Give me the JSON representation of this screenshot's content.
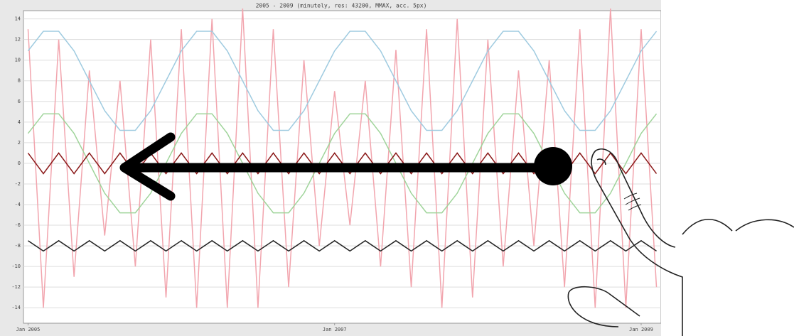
{
  "chart_data": {
    "type": "line",
    "title": "2005 - 2009 (minutely, res: 43200, MMAX, acc. 5px)",
    "x": [
      2005.0,
      2005.1,
      2005.2,
      2005.3,
      2005.4,
      2005.5,
      2005.6,
      2005.7,
      2005.8,
      2005.9,
      2006.0,
      2006.1,
      2006.2,
      2006.3,
      2006.4,
      2006.5,
      2006.6,
      2006.7,
      2006.8,
      2006.9,
      2007.0,
      2007.1,
      2007.2,
      2007.3,
      2007.4,
      2007.5,
      2007.6,
      2007.7,
      2007.8,
      2007.9,
      2008.0,
      2008.1,
      2008.2,
      2008.3,
      2008.4,
      2008.5,
      2008.6,
      2008.7,
      2008.8,
      2008.9,
      2009.0,
      2009.1
    ],
    "series": [
      {
        "color": "#f2a5ae",
        "values": [
          13,
          -14,
          12,
          -11,
          9,
          -7,
          8,
          -10,
          12,
          -13,
          13,
          -14,
          14,
          -14,
          15,
          -14,
          13,
          -12,
          10,
          -8,
          7,
          -6,
          8,
          -10,
          11,
          -12,
          13,
          -14,
          14,
          -13,
          12,
          -10,
          9,
          -8,
          10,
          -12,
          13,
          -14,
          15,
          -14,
          13,
          -12
        ]
      },
      {
        "color": "#9fcbe0",
        "values": [
          10.9,
          12.8,
          12.8,
          10.9,
          8,
          5.1,
          3.2,
          3.2,
          5.1,
          8,
          10.9,
          12.8,
          12.8,
          10.9,
          8,
          5.1,
          3.2,
          3.2,
          5.1,
          8,
          10.9,
          12.8,
          12.8,
          10.9,
          8,
          5.1,
          3.2,
          3.2,
          5.1,
          8,
          10.9,
          12.8,
          12.8,
          10.9,
          8,
          5.1,
          3.2,
          3.2,
          5.1,
          8,
          10.9,
          12.8
        ]
      },
      {
        "color": "#9fd49a",
        "values": [
          2.9,
          4.8,
          4.8,
          2.9,
          0,
          -2.9,
          -4.8,
          -4.8,
          -2.9,
          0,
          2.9,
          4.8,
          4.8,
          2.9,
          0,
          -2.9,
          -4.8,
          -4.8,
          -2.9,
          0,
          2.9,
          4.8,
          4.8,
          2.9,
          0,
          -2.9,
          -4.8,
          -4.8,
          -2.9,
          0,
          2.9,
          4.8,
          4.8,
          2.9,
          0,
          -2.9,
          -4.8,
          -4.8,
          -2.9,
          0,
          2.9,
          4.8
        ]
      },
      {
        "color": "#8b1a1a",
        "values": [
          1,
          -1,
          1,
          -1,
          1,
          -1,
          1,
          -1,
          1,
          -1,
          1,
          -1,
          1,
          -1,
          1,
          -1,
          1,
          -1,
          1,
          -1,
          1,
          -1,
          1,
          -1,
          1,
          -1,
          1,
          -1,
          1,
          -1,
          1,
          -1,
          1,
          -1,
          1,
          -1,
          1,
          -1,
          1,
          -1,
          1,
          -1
        ]
      },
      {
        "color": "#222222",
        "values": [
          -7.5,
          -8.5,
          -7.5,
          -8.5,
          -7.5,
          -8.5,
          -7.5,
          -8.5,
          -7.5,
          -8.5,
          -7.5,
          -8.5,
          -7.5,
          -8.5,
          -7.5,
          -8.5,
          -7.5,
          -8.5,
          -7.5,
          -8.5,
          -7.5,
          -8.5,
          -7.5,
          -8.5,
          -7.5,
          -8.5,
          -7.5,
          -8.5,
          -7.5,
          -8.5,
          -7.5,
          -8.5,
          -7.5,
          -8.5,
          -7.5,
          -8.5,
          -7.5,
          -8.5,
          -7.5,
          -8.5,
          -7.5,
          -8.5
        ]
      }
    ],
    "xlim": [
      2004.97,
      2009.13
    ],
    "xticks": [
      {
        "value": 2005,
        "label": "Jan 2005"
      },
      {
        "value": 2007,
        "label": "Jan 2007"
      },
      {
        "value": 2009,
        "label": "Jan 2009"
      }
    ],
    "ylim": [
      -15.5,
      14.8
    ],
    "yticks": [
      -14,
      -12,
      -10,
      -8,
      -6,
      -4,
      -2,
      0,
      2,
      4,
      6,
      8,
      10,
      12,
      14
    ],
    "grid": true
  }
}
